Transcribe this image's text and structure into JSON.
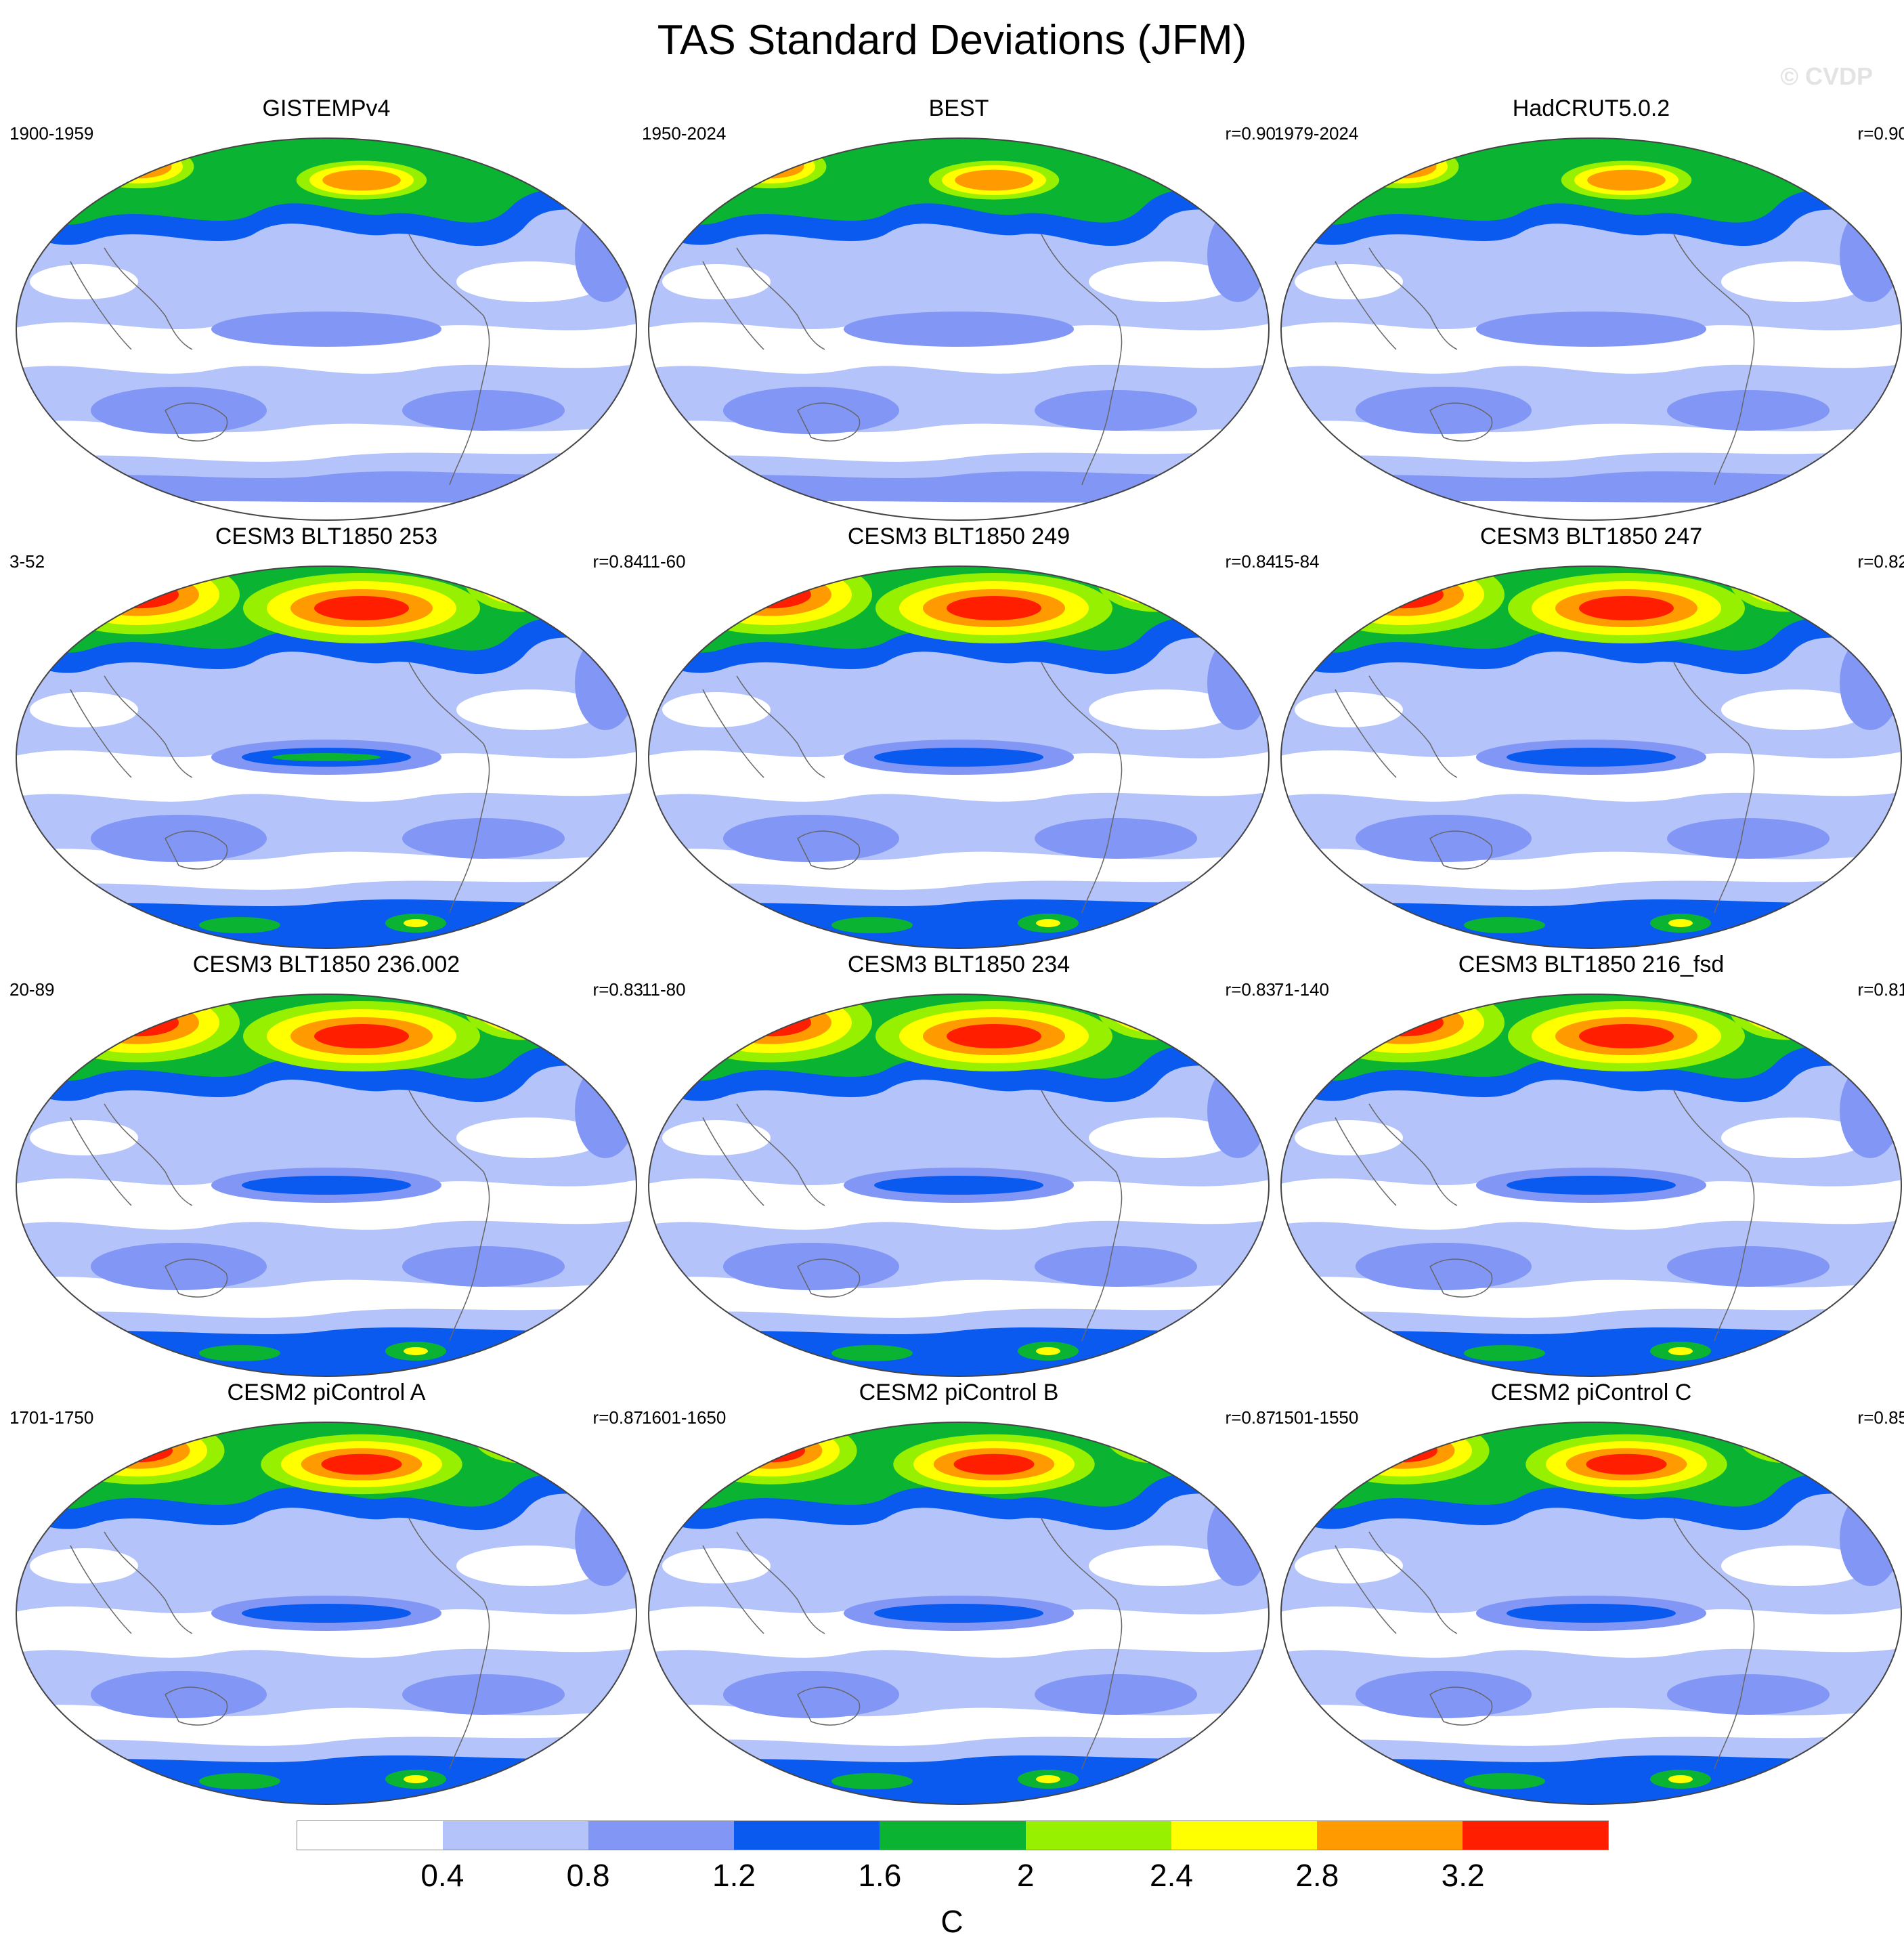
{
  "title": "TAS Standard Deviations (JFM)",
  "watermark": "© CVDP",
  "panels": [
    {
      "title": "GISTEMPv4",
      "period": "1900-1959",
      "r": ""
    },
    {
      "title": "BEST",
      "period": "1950-2024",
      "r": "r=0.90"
    },
    {
      "title": "HadCRUT5.0.2",
      "period": "1979-2024",
      "r": "r=0.90"
    },
    {
      "title": "CESM3 BLT1850 253",
      "period": "3-52",
      "r": "r=0.84"
    },
    {
      "title": "CESM3 BLT1850 249",
      "period": "11-60",
      "r": "r=0.84"
    },
    {
      "title": "CESM3 BLT1850 247",
      "period": "15-84",
      "r": "r=0.82"
    },
    {
      "title": "CESM3 BLT1850 236.002",
      "period": "20-89",
      "r": "r=0.83"
    },
    {
      "title": "CESM3 BLT1850 234",
      "period": "11-80",
      "r": "r=0.83"
    },
    {
      "title": "CESM3 BLT1850 216_fsd",
      "period": "71-140",
      "r": "r=0.81"
    },
    {
      "title": "CESM2 piControl A",
      "period": "1701-1750",
      "r": "r=0.87"
    },
    {
      "title": "CESM2 piControl B",
      "period": "1601-1650",
      "r": "r=0.87"
    },
    {
      "title": "CESM2 piControl C",
      "period": "1501-1550",
      "r": "r=0.85"
    }
  ],
  "colorbar": {
    "ticks": [
      "0.4",
      "0.8",
      "1.2",
      "1.6",
      "2",
      "2.4",
      "2.8",
      "3.2"
    ],
    "unit": "C",
    "colors": [
      "#ffffff",
      "#b4c3fa",
      "#8296f5",
      "#0a5af0",
      "#0ab432",
      "#96f000",
      "#ffff00",
      "#ff9b00",
      "#ff1e00"
    ]
  },
  "map_colors": {
    "ocean_base": "#b4c3fa",
    "low": "#ffffff",
    "mid": "#8296f5",
    "high_blue": "#0a5af0",
    "green": "#0ab432",
    "lime": "#96f000",
    "yellow": "#ffff00",
    "orange": "#ff9b00",
    "red": "#ff1e00",
    "coast": "#666666"
  }
}
